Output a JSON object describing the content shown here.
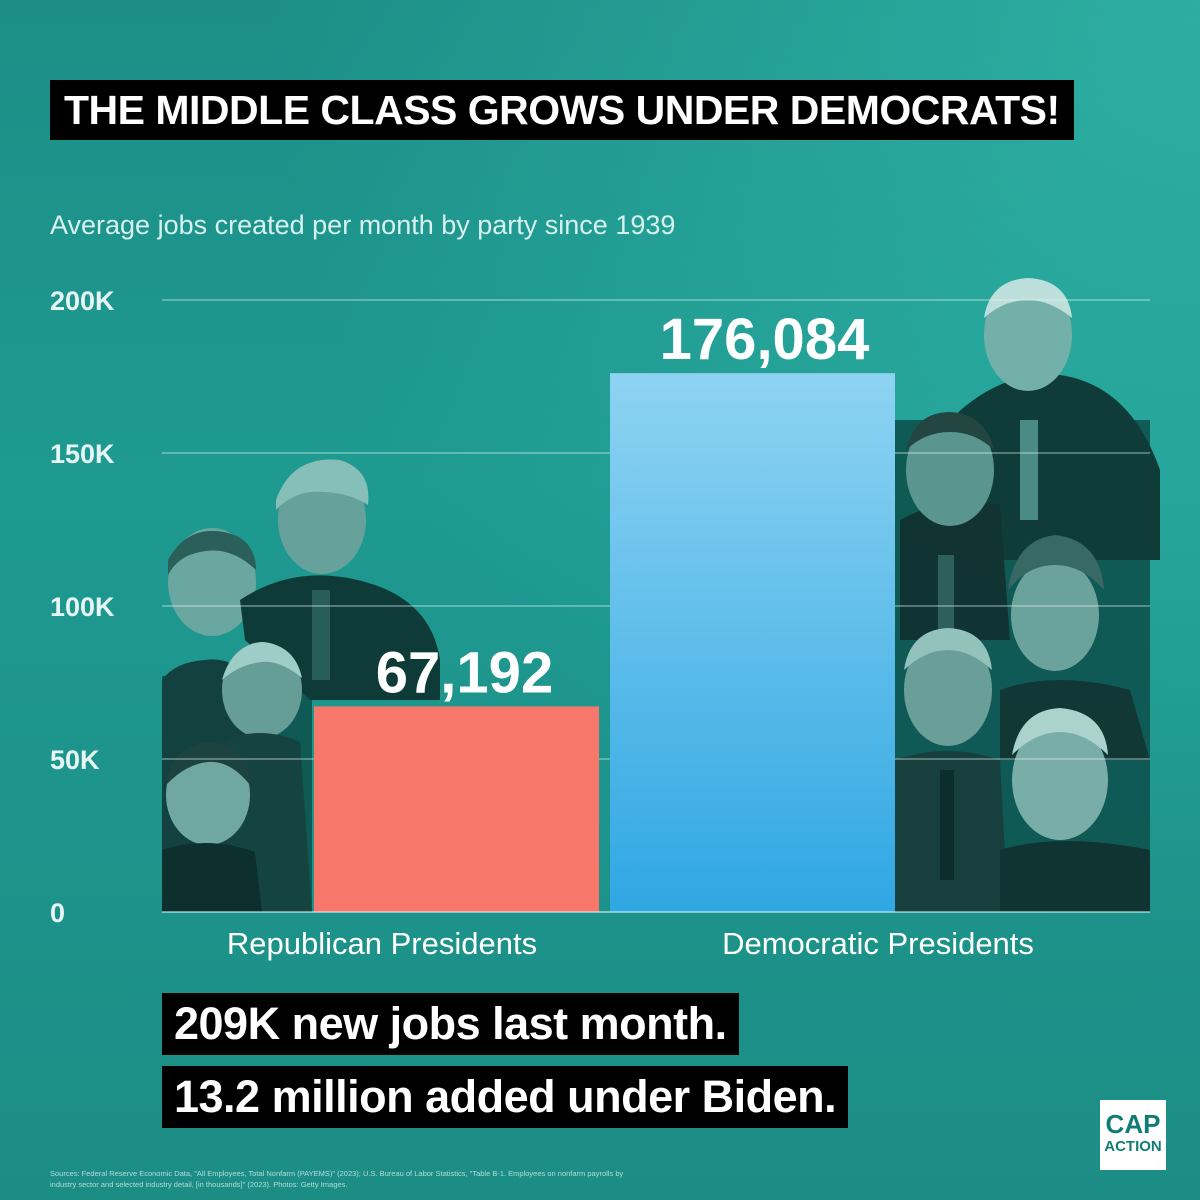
{
  "headline": "THE MIDDLE CLASS GROWS UNDER DEMOCRATS!",
  "callouts": [
    "209K new jobs last month.",
    "13.2 million added under Biden."
  ],
  "sources": "Sources: Federal Reserve Economic Data, \"All Employees, Total Nonfarm (PAYEMS)\" (2023); U.S. Bureau of Labor Statistics, \"Table B-1. Employees on nonfarm payrolls by industry sector and selected industry detail, [in thousands]\" (2023). Photos: Getty Images.",
  "logo": {
    "line1": "CAP",
    "line2": "ACTION"
  },
  "chart_data": {
    "type": "bar",
    "title": "THE MIDDLE CLASS GROWS UNDER DEMOCRATS!",
    "subtitle": "Average jobs created per month by party since 1939",
    "categories": [
      "Republican Presidents",
      "Democratic Presidents"
    ],
    "values": [
      67192,
      176084
    ],
    "data_labels": [
      "67,192",
      "176,084"
    ],
    "colors": [
      "#f7776b",
      "#48b4e8"
    ],
    "ylim": [
      0,
      200000
    ],
    "y_ticks": [
      {
        "value": 0,
        "label": "0"
      },
      {
        "value": 50000,
        "label": "50K"
      },
      {
        "value": 100000,
        "label": "100K"
      },
      {
        "value": 150000,
        "label": "150K"
      },
      {
        "value": 200000,
        "label": "200K"
      }
    ],
    "grid": true,
    "legend": "none"
  }
}
